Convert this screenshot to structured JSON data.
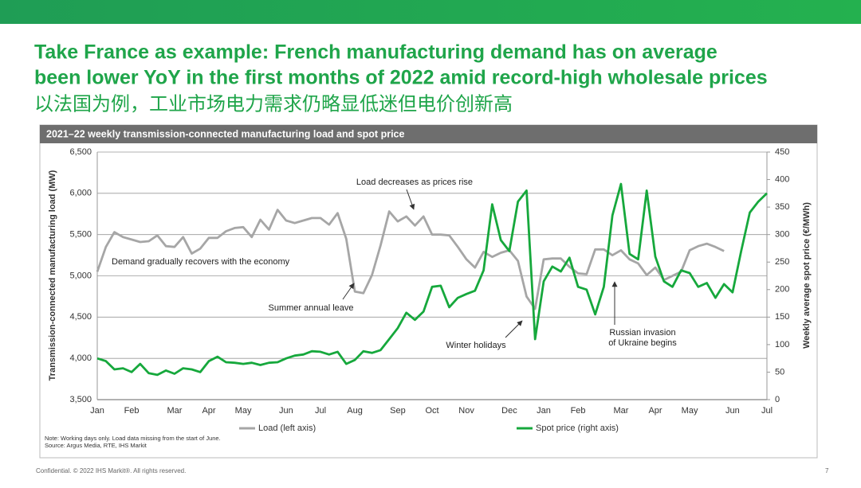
{
  "slide": {
    "title_lines": [
      "Take France as example: French manufacturing demand has on average",
      "been lower YoY in the first months of 2022 amid record-high wholesale prices",
      "以法国为例，工业市场电力需求仍略显低迷但电价创新高"
    ],
    "notes": [
      "Note: Working days only. Load data missing from the start of June.",
      "Source: Argus Media, RTE, IHS Markit"
    ],
    "footer": "Confidential. © 2022 IHS Markit®. All rights reserved.",
    "page": "7"
  },
  "chart_data": {
    "type": "line",
    "title": "2021–22 weekly transmission-connected manufacturing load and spot price",
    "ylabel": "Transmission-connected manufacturing load (MW)",
    "y2label": "Weekly average spot price (€/MWh)",
    "categories": [
      "Jan",
      null,
      null,
      null,
      "Feb",
      null,
      null,
      null,
      null,
      "Mar",
      null,
      null,
      null,
      "Apr",
      null,
      null,
      null,
      "May",
      null,
      null,
      null,
      null,
      "Jun",
      null,
      null,
      null,
      "Jul",
      null,
      null,
      null,
      "Aug",
      null,
      null,
      null,
      null,
      "Sep",
      null,
      null,
      null,
      "Oct",
      null,
      null,
      null,
      "Nov",
      null,
      null,
      null,
      null,
      "Dec",
      null,
      null,
      null,
      "Jan",
      null,
      null,
      null,
      "Feb",
      null,
      null,
      null,
      null,
      "Mar",
      null,
      null,
      null,
      "Apr",
      null,
      null,
      null,
      "May",
      null,
      null,
      null,
      null,
      "Jun",
      null,
      null,
      null,
      "Jul"
    ],
    "series": [
      {
        "name": "Load (left axis)",
        "color": "#a6a6a6",
        "values": [
          5050,
          5350,
          5530,
          5470,
          5440,
          5410,
          5420,
          5490,
          5360,
          5350,
          5470,
          5270,
          5330,
          5460,
          5460,
          5540,
          5580,
          5590,
          5470,
          5680,
          5560,
          5800,
          5670,
          5640,
          5670,
          5700,
          5700,
          5620,
          5760,
          5450,
          4810,
          4790,
          5010,
          5370,
          5780,
          5660,
          5720,
          5610,
          5720,
          5500,
          5500,
          5490,
          5350,
          5200,
          5100,
          5290,
          5230,
          5280,
          5310,
          5180,
          4750,
          4600,
          5200,
          5210,
          5210,
          5110,
          5030,
          5020,
          5320,
          5320,
          5250,
          5310,
          5200,
          5150,
          5010,
          5100,
          4950,
          5000,
          5050,
          5310,
          5360,
          5390,
          5350,
          5300,
          null,
          null,
          null,
          null,
          null
        ]
      },
      {
        "name": "Spot price (right axis)",
        "color": "#16a83c",
        "axis": "y2",
        "values": [
          75,
          70,
          55,
          57,
          50,
          65,
          48,
          45,
          53,
          47,
          57,
          55,
          50,
          70,
          78,
          68,
          67,
          65,
          67,
          63,
          67,
          68,
          75,
          80,
          82,
          88,
          87,
          82,
          87,
          65,
          72,
          88,
          85,
          90,
          110,
          130,
          158,
          145,
          160,
          205,
          207,
          168,
          185,
          192,
          198,
          235,
          355,
          290,
          270,
          360,
          380,
          110,
          215,
          242,
          233,
          258,
          205,
          200,
          155,
          205,
          335,
          392,
          265,
          255,
          380,
          260,
          215,
          205,
          235,
          230,
          205,
          212,
          185,
          210,
          195,
          270,
          340,
          360,
          375
        ]
      }
    ],
    "ylim": [
      3500,
      6500
    ],
    "yticks": [
      {
        "value": 3500,
        "label": "3,500"
      },
      {
        "value": 4000,
        "label": "4,000"
      },
      {
        "value": 4500,
        "label": "4,500"
      },
      {
        "value": 5000,
        "label": "5,000"
      },
      {
        "value": 5500,
        "label": "5,500"
      },
      {
        "value": 6000,
        "label": "6,000"
      },
      {
        "value": 6500,
        "label": "6,500"
      }
    ],
    "y2lim": [
      0,
      450
    ],
    "y2ticks": [
      0,
      50,
      100,
      150,
      200,
      250,
      300,
      350,
      400,
      450
    ],
    "grid": true,
    "annotations": [
      "Load decreases as prices rise",
      "Demand gradually recovers with the economy",
      "Summer annual leave",
      "Winter holidays",
      "Russian invasion",
      "of Ukraine begins"
    ]
  }
}
